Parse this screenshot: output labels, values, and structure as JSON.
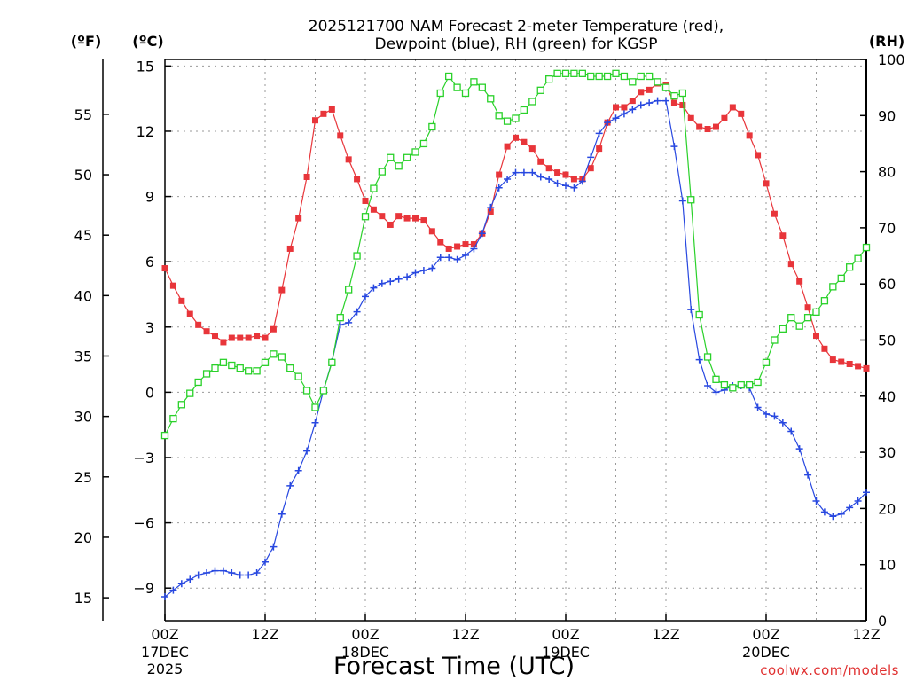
{
  "chart_data": {
    "type": "line",
    "title_lines": [
      "2025121700 NAM Forecast 2-meter Temperature (red),",
      "Dewpoint (blue), RH (green) for KGSP"
    ],
    "xlabel": "Forecast Time (UTC)",
    "credit": "coolwx.com/models",
    "unit_labels": {
      "fahrenheit": "(ºF)",
      "celsius": "(ºC)",
      "rh": "(RH)"
    },
    "x_ticks": [
      {
        "hour": 0,
        "label": "00Z",
        "date": "17DEC",
        "year": "2025"
      },
      {
        "hour": 12,
        "label": "12Z"
      },
      {
        "hour": 24,
        "label": "00Z",
        "date": "18DEC"
      },
      {
        "hour": 36,
        "label": "12Z"
      },
      {
        "hour": 48,
        "label": "00Z",
        "date": "19DEC"
      },
      {
        "hour": 60,
        "label": "12Z"
      },
      {
        "hour": 72,
        "label": "00Z",
        "date": "20DEC"
      },
      {
        "hour": 84,
        "label": "12Z"
      }
    ],
    "xlim": [
      0,
      84
    ],
    "celsius_axis": {
      "lim": [
        -10.5,
        15.3
      ],
      "ticks": [
        "−9",
        "−6",
        "−3",
        "0",
        "3",
        "6",
        "9",
        "12",
        "15"
      ]
    },
    "fahrenheit_axis": {
      "ticks": [
        "15",
        "20",
        "25",
        "30",
        "35",
        "40",
        "45",
        "50",
        "55"
      ]
    },
    "rh_axis": {
      "lim": [
        0,
        100
      ],
      "ticks": [
        "0",
        "10",
        "20",
        "30",
        "40",
        "50",
        "60",
        "70",
        "80",
        "90",
        "100"
      ]
    },
    "series": [
      {
        "name": "Temperature",
        "units": "C",
        "color": "#e8353a",
        "marker": "filled-square",
        "values": [
          5.7,
          4.9,
          4.2,
          3.6,
          3.1,
          2.8,
          2.6,
          2.3,
          2.5,
          2.5,
          2.5,
          2.6,
          2.5,
          2.9,
          4.7,
          6.6,
          8.0,
          9.9,
          12.5,
          12.8,
          13.0,
          11.8,
          10.7,
          9.8,
          8.8,
          8.4,
          8.1,
          7.7,
          8.1,
          8.0,
          8.0,
          7.9,
          7.4,
          6.9,
          6.6,
          6.7,
          6.8,
          6.8,
          7.3,
          8.3,
          10.0,
          11.3,
          11.7,
          11.5,
          11.2,
          10.6,
          10.3,
          10.1,
          10.0,
          9.8,
          9.8,
          10.3,
          11.2,
          12.4,
          13.1,
          13.1,
          13.4,
          13.8,
          13.9,
          14.2,
          14.1,
          13.3,
          13.2,
          12.6,
          12.2,
          12.1,
          12.2,
          12.6,
          13.1,
          12.8,
          11.8,
          10.9,
          9.6,
          8.2,
          7.2,
          5.9,
          5.1,
          3.9,
          2.6,
          2.0,
          1.5,
          1.4,
          1.3,
          1.2,
          1.1
        ]
      },
      {
        "name": "Dewpoint",
        "units": "C",
        "color": "#2848e0",
        "marker": "plus",
        "values": [
          -9.4,
          -9.1,
          -8.8,
          -8.6,
          -8.4,
          -8.3,
          -8.2,
          -8.2,
          -8.3,
          -8.4,
          -8.4,
          -8.3,
          -7.8,
          -7.1,
          -5.6,
          -4.3,
          -3.6,
          -2.7,
          -1.4,
          0.1,
          1.4,
          3.1,
          3.2,
          3.7,
          4.4,
          4.8,
          5.0,
          5.1,
          5.2,
          5.3,
          5.5,
          5.6,
          5.7,
          6.2,
          6.2,
          6.1,
          6.3,
          6.6,
          7.3,
          8.5,
          9.4,
          9.8,
          10.1,
          10.1,
          10.1,
          9.9,
          9.8,
          9.6,
          9.5,
          9.4,
          9.7,
          10.8,
          11.9,
          12.4,
          12.6,
          12.8,
          13.0,
          13.2,
          13.3,
          13.4,
          13.4,
          11.3,
          8.8,
          3.8,
          1.5,
          0.3,
          0.0,
          0.1,
          0.3,
          0.3,
          0.2,
          -0.7,
          -1.0,
          -1.1,
          -1.4,
          -1.8,
          -2.6,
          -3.8,
          -5.0,
          -5.5,
          -5.7,
          -5.6,
          -5.3,
          -5.0,
          -4.6
        ]
      },
      {
        "name": "RH",
        "units": "%",
        "color": "#2ad12a",
        "marker": "open-square",
        "values": [
          33,
          36,
          38.5,
          40.5,
          42.5,
          44,
          45,
          46,
          45.5,
          45,
          44.5,
          44.5,
          46,
          47.5,
          47,
          45,
          43.5,
          41,
          38,
          41,
          46,
          54,
          59,
          65,
          72,
          77,
          80,
          82.5,
          81,
          82.5,
          83.5,
          85,
          88,
          94,
          97,
          95,
          94,
          96,
          95,
          93,
          90,
          89,
          89.5,
          91,
          92.5,
          94.5,
          96.5,
          97.5,
          97.5,
          97.5,
          97.5,
          97,
          97,
          97,
          97.5,
          97,
          96,
          97,
          97,
          96,
          95,
          93.5,
          94,
          75,
          54.5,
          47,
          43,
          42,
          41.5,
          42,
          42,
          42.5,
          46,
          50,
          52,
          54,
          52.5,
          54,
          55,
          57,
          59.5,
          61,
          63,
          64.5,
          66.5
        ]
      }
    ]
  }
}
